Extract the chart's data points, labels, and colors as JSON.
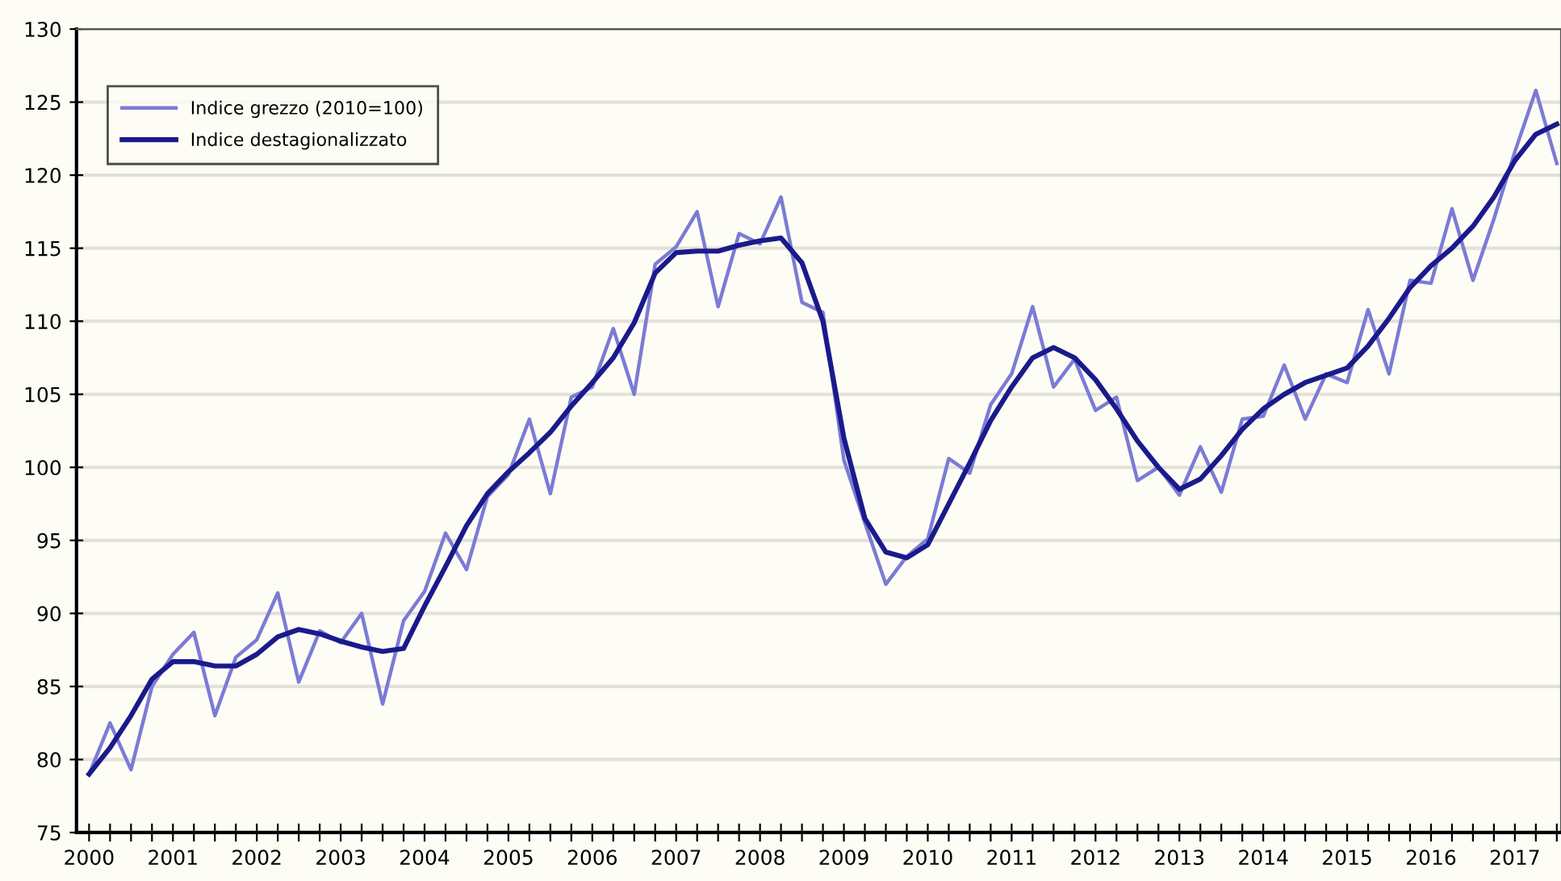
{
  "chart_data": {
    "type": "line",
    "x": [
      2000,
      2000.25,
      2000.5,
      2000.75,
      2001,
      2001.25,
      2001.5,
      2001.75,
      2002,
      2002.25,
      2002.5,
      2002.75,
      2003,
      2003.25,
      2003.5,
      2003.75,
      2004,
      2004.25,
      2004.5,
      2004.75,
      2005,
      2005.25,
      2005.5,
      2005.75,
      2006,
      2006.25,
      2006.5,
      2006.75,
      2007,
      2007.25,
      2007.5,
      2007.75,
      2008,
      2008.25,
      2008.5,
      2008.75,
      2009,
      2009.25,
      2009.5,
      2009.75,
      2010,
      2010.25,
      2010.5,
      2010.75,
      2011,
      2011.25,
      2011.5,
      2011.75,
      2012,
      2012.25,
      2012.5,
      2012.75,
      2013,
      2013.25,
      2013.5,
      2013.75,
      2014,
      2014.25,
      2014.5,
      2014.75,
      2015,
      2015.25,
      2015.5,
      2015.75,
      2016,
      2016.25,
      2016.5,
      2016.75,
      2017,
      2017.25,
      2017.5
    ],
    "series": [
      {
        "name": "Indice grezzo (2010=100)",
        "color": "#7b7bd6",
        "values": [
          79,
          82.5,
          79.3,
          85,
          87.2,
          88.7,
          83,
          87,
          88.2,
          91.4,
          85.3,
          88.8,
          88,
          90,
          83.8,
          89.5,
          91.5,
          95.5,
          93,
          98,
          99.5,
          103.3,
          98.2,
          104.8,
          105.5,
          109.5,
          105,
          113.9,
          115.1,
          117.5,
          111,
          116,
          115.3,
          118.5,
          111.3,
          110.6,
          100.5,
          96.2,
          92,
          93.9,
          95.1,
          100.6,
          99.6,
          104.3,
          106.4,
          111,
          105.5,
          107.4,
          103.9,
          104.8,
          99.1,
          100,
          98.1,
          101.4,
          98.3,
          103.3,
          103.5,
          107,
          103.3,
          106.4,
          105.8,
          110.8,
          106.4,
          112.8,
          112.6,
          117.7,
          112.8,
          117,
          121.6,
          125.8,
          120.8
        ]
      },
      {
        "name": "Indice destagionalizzato",
        "color": "#1a1a8c",
        "values": [
          79,
          80.8,
          83,
          85.5,
          86.7,
          86.7,
          86.4,
          86.4,
          87.2,
          88.4,
          88.9,
          88.6,
          88.1,
          87.7,
          87.4,
          87.6,
          90.5,
          93.2,
          96,
          98.2,
          99.7,
          101,
          102.4,
          104.2,
          105.8,
          107.5,
          109.9,
          113.3,
          114.7,
          114.8,
          114.8,
          115.2,
          115.5,
          115.7,
          114,
          110,
          102,
          96.5,
          94.2,
          93.8,
          94.7,
          97.5,
          100.3,
          103.2,
          105.5,
          107.5,
          108.2,
          107.5,
          106,
          104,
          101.8,
          100,
          98.5,
          99.2,
          100.8,
          102.6,
          104,
          105,
          105.8,
          106.3,
          106.8,
          108.3,
          110.2,
          112.3,
          113.8,
          115,
          116.5,
          118.5,
          121,
          122.8,
          123.5
        ]
      }
    ],
    "xlim": [
      1999.85,
      2017.55
    ],
    "xticks": [
      2000,
      {
        "value": 2000.25,
        "label": null
      },
      {
        "value": 2000.5,
        "label": null
      },
      {
        "value": 2000.75,
        "label": null
      },
      2001,
      {
        "value": 2001.25,
        "label": null
      },
      {
        "value": 2001.5,
        "label": null
      },
      {
        "value": 2001.75,
        "label": null
      },
      2002,
      {
        "value": 2002.25,
        "label": null
      },
      {
        "value": 2002.5,
        "label": null
      },
      {
        "value": 2002.75,
        "label": null
      },
      2003,
      {
        "value": 2003.25,
        "label": null
      },
      {
        "value": 2003.5,
        "label": null
      },
      {
        "value": 2003.75,
        "label": null
      },
      2004,
      {
        "value": 2004.25,
        "label": null
      },
      {
        "value": 2004.5,
        "label": null
      },
      {
        "value": 2004.75,
        "label": null
      },
      2005,
      {
        "value": 2005.25,
        "label": null
      },
      {
        "value": 2005.5,
        "label": null
      },
      {
        "value": 2005.75,
        "label": null
      },
      2006,
      {
        "value": 2006.25,
        "label": null
      },
      {
        "value": 2006.5,
        "label": null
      },
      {
        "value": 2006.75,
        "label": null
      },
      2007,
      {
        "value": 2007.25,
        "label": null
      },
      {
        "value": 2007.5,
        "label": null
      },
      {
        "value": 2007.75,
        "label": null
      },
      2008,
      {
        "value": 2008.25,
        "label": null
      },
      {
        "value": 2008.5,
        "label": null
      },
      {
        "value": 2008.75,
        "label": null
      },
      2009,
      {
        "value": 2009.25,
        "label": null
      },
      {
        "value": 2009.5,
        "label": null
      },
      {
        "value": 2009.75,
        "label": null
      },
      2010,
      {
        "value": 2010.25,
        "label": null
      },
      {
        "value": 2010.5,
        "label": null
      },
      {
        "value": 2010.75,
        "label": null
      },
      2011,
      {
        "value": 2011.25,
        "label": null
      },
      {
        "value": 2011.5,
        "label": null
      },
      {
        "value": 2011.75,
        "label": null
      },
      2012,
      {
        "value": 2012.25,
        "label": null
      },
      {
        "value": 2012.5,
        "label": null
      },
      {
        "value": 2012.75,
        "label": null
      },
      2013,
      {
        "value": 2013.25,
        "label": null
      },
      {
        "value": 2013.5,
        "label": null
      },
      {
        "value": 2013.75,
        "label": null
      },
      2014,
      {
        "value": 2014.25,
        "label": null
      },
      {
        "value": 2014.5,
        "label": null
      },
      {
        "value": 2014.75,
        "label": null
      },
      2015,
      {
        "value": 2015.25,
        "label": null
      },
      {
        "value": 2015.5,
        "label": null
      },
      {
        "value": 2015.75,
        "label": null
      },
      2016,
      {
        "value": 2016.25,
        "label": null
      },
      {
        "value": 2016.5,
        "label": null
      },
      {
        "value": 2016.75,
        "label": null
      },
      2017,
      {
        "value": 2017.25,
        "label": null
      },
      {
        "value": 2017.5,
        "label": null
      }
    ],
    "ylim": [
      75,
      130
    ],
    "yticks": [
      75,
      80,
      85,
      90,
      95,
      100,
      105,
      110,
      115,
      120,
      125,
      130
    ],
    "grid": "y",
    "legend": "top left",
    "marker": "none",
    "line_style": "solid"
  }
}
